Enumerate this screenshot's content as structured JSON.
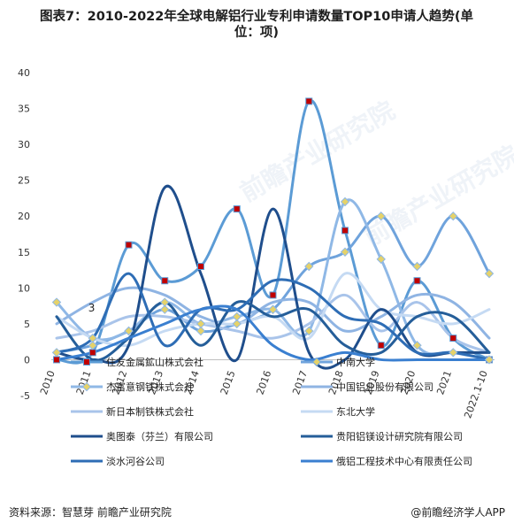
{
  "title_line1": "图表7：2010-2022年全球电解铝行业专利申请数量TOP10申请人趋势(单",
  "title_line2": "位：项)",
  "source": "资料来源：智慧芽 前瞻产业研究院",
  "brand": "@前瞻经济学人APP",
  "watermark": "前瞻产业研究院",
  "chart_data": {
    "type": "line",
    "categories": [
      "2010",
      "2011",
      "2012",
      "2013",
      "2014",
      "2015",
      "2016",
      "2017",
      "2018",
      "2019",
      "2020",
      "2021",
      "2022.1-10"
    ],
    "ylim": [
      -5,
      40
    ],
    "yticks": [
      -5,
      0,
      5,
      10,
      15,
      20,
      25,
      30,
      35,
      40
    ],
    "smooth": true,
    "series": [
      {
        "name": "住友金属鉱山株式会社",
        "color": "#5b9bd5",
        "marker": "square-red",
        "values": [
          0,
          1,
          16,
          11,
          13,
          21,
          9,
          36,
          18,
          2,
          11,
          3,
          0
        ]
      },
      {
        "name": "中南大学",
        "color": "#6fa3dc",
        "marker": "diamond",
        "values": [
          1,
          2,
          4,
          7,
          4,
          5,
          7,
          13,
          15,
          20,
          13,
          20,
          12
        ]
      },
      {
        "name": "杰富意钢铁株式会社",
        "color": "#8fb8e6",
        "marker": "diamond",
        "values": [
          8,
          3,
          4,
          8,
          5,
          6,
          7,
          4,
          22,
          14,
          2,
          1,
          0
        ]
      },
      {
        "name": "中国铝业股份有限公司",
        "color": "#8fb4e3",
        "values": [
          5,
          8,
          10,
          9,
          6,
          5,
          8,
          8,
          4,
          6,
          9,
          8,
          3
        ]
      },
      {
        "name": "新日本制铁株式会社",
        "color": "#a9c4ea",
        "values": [
          3,
          4,
          6,
          6,
          5,
          4,
          3,
          5,
          9,
          4,
          8,
          3,
          1
        ]
      },
      {
        "name": "东北大学",
        "color": "#c5daf3",
        "values": [
          6,
          3,
          2,
          4,
          5,
          5,
          6,
          3,
          12,
          7,
          6,
          5,
          7
        ]
      },
      {
        "name": "奥图泰（芬兰）有限公司",
        "color": "#1f4e8c",
        "values": [
          1,
          0,
          2,
          24,
          12,
          0,
          21,
          1,
          0,
          7,
          1,
          1,
          1
        ]
      },
      {
        "name": "贵阳铝镁设计研究院有限公司",
        "color": "#255e99",
        "values": [
          6,
          0,
          3,
          8,
          2,
          8,
          6,
          7,
          2,
          1,
          6,
          6,
          1
        ]
      },
      {
        "name": "淡水河谷公司",
        "color": "#2e6db5",
        "values": [
          1,
          3,
          12,
          2,
          7,
          7,
          11,
          10,
          6,
          5,
          1,
          1,
          0
        ]
      },
      {
        "name": "俄铝工程技术中心有限责任公司",
        "color": "#3a7fd0",
        "values": [
          0,
          1,
          3,
          5,
          7,
          7,
          2,
          0,
          1,
          0,
          0,
          0,
          0
        ]
      }
    ],
    "annotation": "3"
  }
}
